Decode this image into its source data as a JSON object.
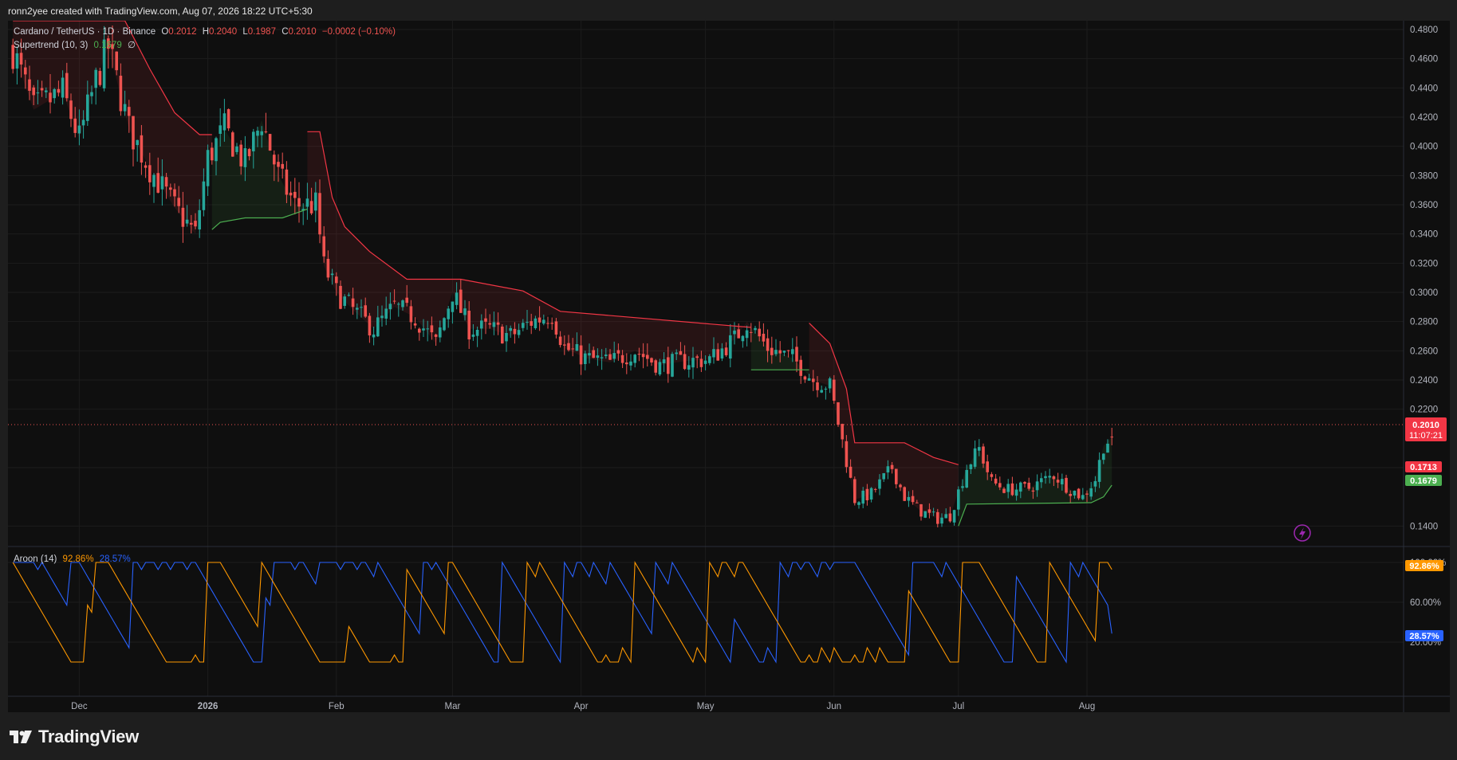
{
  "header": {
    "credit": "ronn2yee created with TradingView.com, Aug 07, 2026 18:22 UTC+5:30"
  },
  "legend": {
    "symbol": "Cardano / TetherUS · 1D · Binance",
    "o_label": "O",
    "o": "0.2012",
    "h_label": "H",
    "h": "0.2040",
    "l_label": "L",
    "l": "0.1987",
    "c_label": "C",
    "c": "0.2010",
    "change": "−0.0002 (−0.10%)",
    "supertrend_label": "Supertrend (10, 3)",
    "supertrend_value": "0.1679",
    "supertrend_extra": "∅"
  },
  "aroon_legend": {
    "label": "Aroon (14)",
    "up": "92.86%",
    "down": "28.57%"
  },
  "price_badges": {
    "last": "0.2010",
    "countdown": "11:07:21",
    "red_level": "0.1713",
    "green_level": "0.1679"
  },
  "aroon_badges": {
    "up": "92.86%",
    "down": "28.57%"
  },
  "brand": {
    "name": "TradingView"
  },
  "colors": {
    "up": "#26a69a",
    "down": "#ef5350",
    "supertrend_up": "#4caf50",
    "supertrend_down": "#f23645",
    "aroon_up": "#ff9800",
    "aroon_down": "#2962ff",
    "background": "#0f0f0f",
    "grid": "#1c1c1c"
  },
  "chart_data": [
    {
      "type": "candlestick",
      "title": "Cardano / TetherUS · 1D · Binance",
      "y_ticks": [
        "0.4800",
        "0.4600",
        "0.4400",
        "0.4200",
        "0.4000",
        "0.3800",
        "0.3600",
        "0.3400",
        "0.3200",
        "0.3000",
        "0.2800",
        "0.2600",
        "0.2400",
        "0.2200",
        "0.1800",
        "0.1400"
      ],
      "ylim": [
        0.126,
        0.486
      ],
      "x_ticks": [
        "Dec",
        "2026",
        "Feb",
        "Mar",
        "Apr",
        "May",
        "Jun",
        "Jul",
        "Aug"
      ],
      "close_path_points": [
        [
          "Nov 15",
          0.466
        ],
        [
          "Nov 20",
          0.425
        ],
        [
          "Nov 27",
          0.437
        ],
        [
          "Dec 1",
          0.405
        ],
        [
          "Dec 5",
          0.445
        ],
        [
          "Dec 8",
          0.468
        ],
        [
          "Dec 13",
          0.412
        ],
        [
          "Dec 18",
          0.385
        ],
        [
          "Dec 24",
          0.358
        ],
        [
          "Dec 29",
          0.34
        ],
        [
          "Jan 1",
          0.392
        ],
        [
          "Jan 5",
          0.412
        ],
        [
          "Jan 10",
          0.388
        ],
        [
          "Jan 14",
          0.418
        ],
        [
          "Jan 18",
          0.38
        ],
        [
          "Jan 22",
          0.36
        ],
        [
          "Jan 27",
          0.36
        ],
        [
          "Jan 29",
          0.318
        ],
        [
          "Feb 1",
          0.3
        ],
        [
          "Feb 5",
          0.288
        ],
        [
          "Feb 10",
          0.275
        ],
        [
          "Feb 15",
          0.29
        ],
        [
          "Feb 20",
          0.283
        ],
        [
          "Feb 25",
          0.265
        ],
        [
          "Mar 1",
          0.3
        ],
        [
          "Mar 5",
          0.275
        ],
        [
          "Mar 10",
          0.275
        ],
        [
          "Mar 15",
          0.27
        ],
        [
          "Mar 20",
          0.28
        ],
        [
          "Mar 25",
          0.285
        ],
        [
          "Mar 28",
          0.262
        ],
        [
          "Apr 2",
          0.255
        ],
        [
          "Apr 8",
          0.252
        ],
        [
          "Apr 14",
          0.26
        ],
        [
          "Apr 20",
          0.25
        ],
        [
          "Apr 26",
          0.253
        ],
        [
          "May 2",
          0.254
        ],
        [
          "May 8",
          0.268
        ],
        [
          "May 11",
          0.28
        ],
        [
          "May 16",
          0.262
        ],
        [
          "May 22",
          0.255
        ],
        [
          "May 27",
          0.24
        ],
        [
          "May 31",
          0.236
        ],
        [
          "Jun 3",
          0.198
        ],
        [
          "Jun 6",
          0.158
        ],
        [
          "Jun 10",
          0.162
        ],
        [
          "Jun 15",
          0.18
        ],
        [
          "Jun 18",
          0.16
        ],
        [
          "Jun 22",
          0.15
        ],
        [
          "Jun 26",
          0.145
        ],
        [
          "Jun 29",
          0.147
        ],
        [
          "Jul 3",
          0.18
        ],
        [
          "Jul 6",
          0.193
        ],
        [
          "Jul 9",
          0.17
        ],
        [
          "Jul 13",
          0.165
        ],
        [
          "Jul 18",
          0.166
        ],
        [
          "Jul 24",
          0.175
        ],
        [
          "Jul 28",
          0.165
        ],
        [
          "Jul 31",
          0.16
        ],
        [
          "Aug 3",
          0.172
        ],
        [
          "Aug 5",
          0.195
        ],
        [
          "Aug 7",
          0.201
        ]
      ],
      "supertrend_segments": [
        {
          "trend": "down",
          "points": [
            [
              "Nov 15",
              0.486
            ],
            [
              "Dec 12",
              0.486
            ],
            [
              "Dec 18",
              0.453
            ],
            [
              "Dec 24",
              0.423
            ],
            [
              "Dec 30",
              0.408
            ],
            [
              "Jan 2",
              0.408
            ]
          ]
        },
        {
          "trend": "up",
          "points": [
            [
              "Jan 2",
              0.343
            ],
            [
              "Jan 4",
              0.348
            ],
            [
              "Jan 10",
              0.351
            ],
            [
              "Jan 19",
              0.351
            ],
            [
              "Jan 25",
              0.357
            ]
          ]
        },
        {
          "trend": "down",
          "points": [
            [
              "Jan 25",
              0.41
            ],
            [
              "Jan 28",
              0.41
            ],
            [
              "Jan 31",
              0.365
            ],
            [
              "Feb 3",
              0.345
            ],
            [
              "Feb 9",
              0.328
            ],
            [
              "Feb 18",
              0.309
            ],
            [
              "Mar 3",
              0.309
            ],
            [
              "Mar 18",
              0.301
            ],
            [
              "Mar 27",
              0.287
            ],
            [
              "May 12",
              0.276
            ]
          ]
        },
        {
          "trend": "up",
          "points": [
            [
              "May 12",
              0.247
            ],
            [
              "May 26",
              0.247
            ]
          ]
        },
        {
          "trend": "down",
          "points": [
            [
              "May 26",
              0.279
            ],
            [
              "May 31",
              0.265
            ],
            [
              "Jun 4",
              0.234
            ],
            [
              "Jun 6",
              0.197
            ],
            [
              "Jun 18",
              0.197
            ],
            [
              "Jun 25",
              0.187
            ],
            [
              "Jul 1",
              0.182
            ]
          ]
        },
        {
          "trend": "up",
          "points": [
            [
              "Jul 1",
              0.14
            ],
            [
              "Jul 3",
              0.155
            ],
            [
              "Aug 2",
              0.156
            ],
            [
              "Aug 5",
              0.16
            ],
            [
              "Aug 7",
              0.168
            ]
          ]
        }
      ],
      "last_price": 0.201,
      "supertrend": 0.1679
    },
    {
      "type": "line",
      "title": "Aroon (14)",
      "y_ticks": [
        "100.00%",
        "60.00%",
        "20.00%"
      ],
      "ylim": [
        0,
        100
      ],
      "series": [
        {
          "name": "Up",
          "color": "#ff9800",
          "last": 92.86
        },
        {
          "name": "Down",
          "color": "#2962ff",
          "last": 28.57
        }
      ]
    }
  ]
}
